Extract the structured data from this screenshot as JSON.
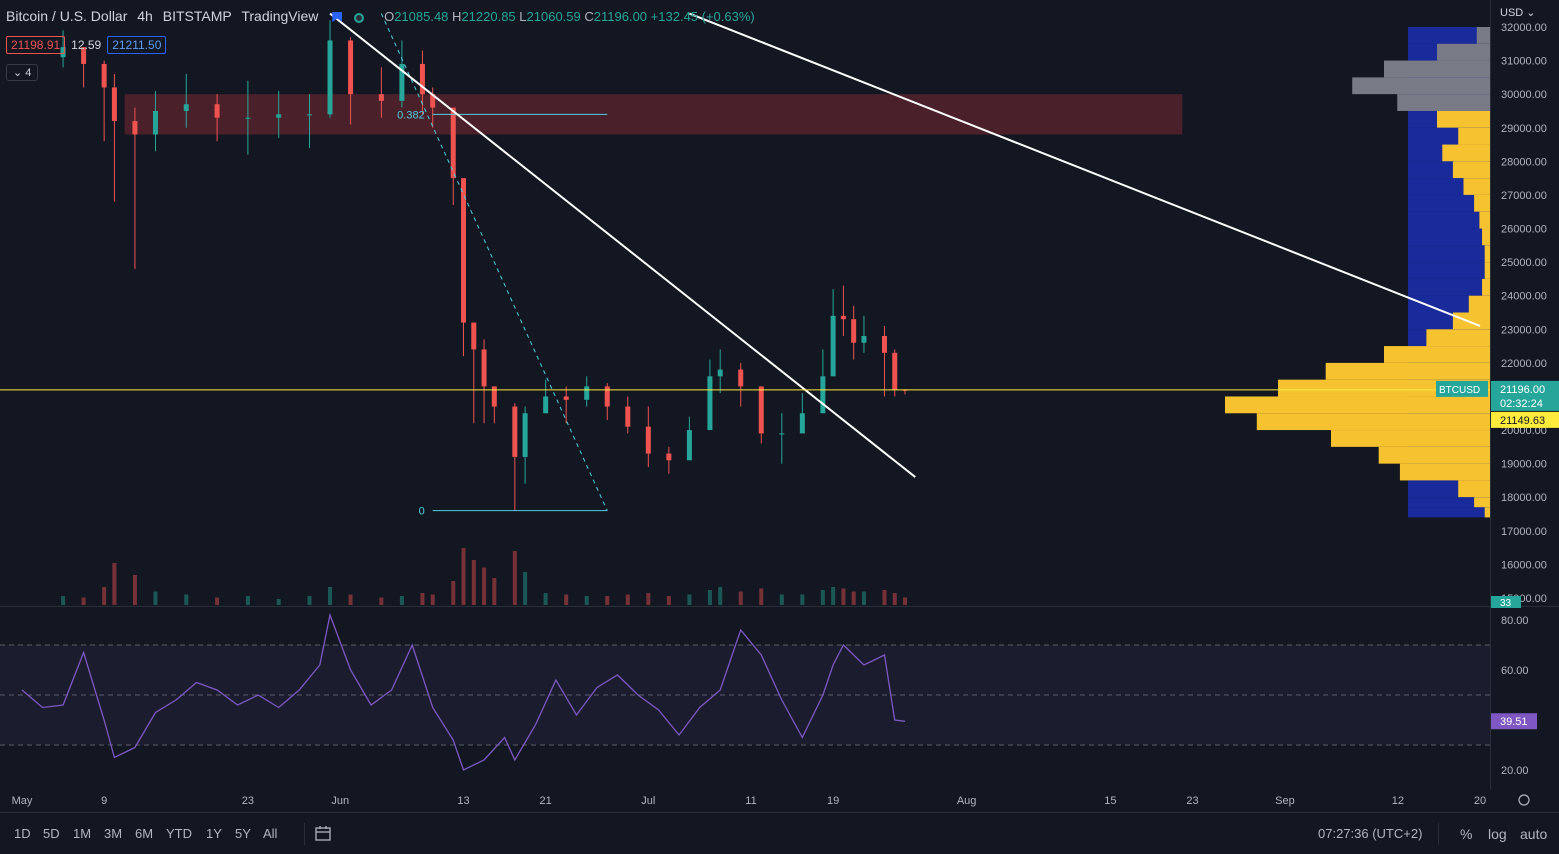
{
  "header": {
    "symbol_title": "Bitcoin / U.S. Dollar",
    "interval": "4h",
    "exchange": "BITSTAMP",
    "source": "TradingView",
    "ohlc": {
      "open_label": "O",
      "open": "21085.48",
      "high_label": "H",
      "high": "21220.85",
      "low_label": "L",
      "low": "21060.59",
      "close_label": "C",
      "close": "21196.00",
      "change": "+132.45 (+0.63%)"
    },
    "bid": "21198.91",
    "spread": "12.59",
    "ask": "21211.50",
    "indicator_count": "4"
  },
  "colors": {
    "background": "#131722",
    "up": "#26a69a",
    "down": "#ef5350",
    "current_price_line": "#ffeb3b",
    "vp_value_area": "#f7c22f",
    "vp_outside": "#787b86",
    "vp_bg": "#1b2ea8",
    "rsi_line": "#7e57c2",
    "fib": "#4dd0e1",
    "zone": "rgba(120,40,50,0.55)",
    "trendline": "#ffffff"
  },
  "chart_data": [
    {
      "type": "candlestick",
      "title": "Bitcoin / U.S. Dollar · 4h · BITSTAMP",
      "currency": "USD",
      "y_ticks": [
        "15000.00",
        "16000.00",
        "17000.00",
        "18000.00",
        "19000.00",
        "20000.00",
        "21000.00",
        "22000.00",
        "23000.00",
        "24000.00",
        "25000.00",
        "26000.00",
        "27000.00",
        "28000.00",
        "29000.00",
        "30000.00",
        "31000.00",
        "32000.00"
      ],
      "ylim": [
        14800,
        32400
      ],
      "x_ticks": [
        "May",
        "9",
        "23",
        "Jun",
        "13",
        "21",
        "Jul",
        "11",
        "19",
        "Aug",
        "15",
        "23",
        "Sep",
        "12",
        "20"
      ],
      "x_tick_dates": [
        "2022-05-01",
        "2022-05-09",
        "2022-05-23",
        "2022-06-01",
        "2022-06-13",
        "2022-06-21",
        "2022-07-01",
        "2022-07-11",
        "2022-07-19",
        "2022-08-01",
        "2022-08-15",
        "2022-08-23",
        "2022-09-01",
        "2022-09-12",
        "2022-09-20"
      ],
      "series": [
        {
          "name": "BTCUSD",
          "x": [
            "2022-05-05",
            "2022-05-07",
            "2022-05-09",
            "2022-05-10",
            "2022-05-12",
            "2022-05-14",
            "2022-05-17",
            "2022-05-20",
            "2022-05-23",
            "2022-05-26",
            "2022-05-29",
            "2022-05-31",
            "2022-06-02",
            "2022-06-05",
            "2022-06-07",
            "2022-06-09",
            "2022-06-10",
            "2022-06-12",
            "2022-06-13",
            "2022-06-14",
            "2022-06-15",
            "2022-06-16",
            "2022-06-18",
            "2022-06-19",
            "2022-06-21",
            "2022-06-23",
            "2022-06-25",
            "2022-06-27",
            "2022-06-29",
            "2022-07-01",
            "2022-07-03",
            "2022-07-05",
            "2022-07-07",
            "2022-07-08",
            "2022-07-10",
            "2022-07-12",
            "2022-07-14",
            "2022-07-16",
            "2022-07-18",
            "2022-07-19",
            "2022-07-20",
            "2022-07-21",
            "2022-07-22",
            "2022-07-24",
            "2022-07-25",
            "2022-07-26"
          ],
          "close": [
            31400,
            30900,
            30200,
            29200,
            28800,
            29500,
            29700,
            29300,
            29300,
            29400,
            29400,
            31600,
            30000,
            29800,
            30900,
            30000,
            29600,
            27500,
            23200,
            22400,
            21300,
            20700,
            19200,
            20500,
            21000,
            20900,
            21300,
            20700,
            20100,
            19300,
            19100,
            20000,
            21600,
            21800,
            21300,
            19900,
            19900,
            20500,
            21600,
            23400,
            23300,
            22600,
            22800,
            22300,
            21200,
            21196
          ],
          "high": [
            31900,
            31400,
            31000,
            30600,
            29600,
            30100,
            30600,
            30000,
            30400,
            30100,
            30000,
            32200,
            31700,
            30800,
            31600,
            31300,
            30200,
            29600,
            25500,
            23100,
            22700,
            21300,
            20800,
            20700,
            21500,
            21300,
            21600,
            21400,
            21000,
            20700,
            19500,
            20400,
            22100,
            22400,
            22000,
            20500,
            20500,
            21100,
            22400,
            24200,
            24300,
            23700,
            23400,
            23100,
            22400,
            21221
          ],
          "low": [
            30800,
            30200,
            28600,
            26800,
            24800,
            28300,
            29000,
            28600,
            28200,
            28700,
            28400,
            29300,
            29100,
            29300,
            29600,
            29400,
            29000,
            26700,
            22200,
            20200,
            20200,
            20200,
            17600,
            18400,
            20500,
            20200,
            20700,
            20300,
            19900,
            18900,
            18700,
            19200,
            20200,
            21100,
            20700,
            19600,
            19000,
            20100,
            20800,
            21600,
            22800,
            22100,
            22300,
            21000,
            21000,
            21060
          ]
        }
      ],
      "price_line": {
        "label": "BTCUSD",
        "value": 21196.0,
        "countdown": "02:32:24"
      },
      "marker_value": "21149.63",
      "zone": {
        "from": "2022-05-11",
        "to": "2022-08-22",
        "low": 28800,
        "high": 30000
      },
      "fib_levels": [
        {
          "label": "0.382",
          "value": 29400
        },
        {
          "label": "0",
          "value": 17600
        }
      ],
      "fib_range_dates": [
        "2022-06-10",
        "2022-06-27"
      ],
      "trendlines": [
        {
          "from_date": "2022-05-31",
          "from_value": 32400,
          "to_date": "2022-07-27",
          "to_value": 18600
        },
        {
          "from_date": "2022-07-05",
          "from_value": 32400,
          "to_date": "2022-09-20",
          "to_value": 23100
        }
      ],
      "fib_diagonal": {
        "from_date": "2022-06-05",
        "from_value": 32400,
        "to_date": "2022-06-27",
        "to_value": 17600
      },
      "volume": {
        "max": 40,
        "values": [
          6,
          5,
          12,
          28,
          20,
          9,
          7,
          5,
          6,
          4,
          6,
          12,
          7,
          5,
          6,
          8,
          7,
          16,
          38,
          30,
          25,
          18,
          36,
          22,
          8,
          7,
          6,
          6,
          7,
          8,
          6,
          7,
          10,
          12,
          9,
          11,
          7,
          7,
          10,
          12,
          11,
          9,
          9,
          10,
          8,
          5
        ]
      },
      "volume_profile": {
        "price_levels": [
          32000,
          31500,
          31000,
          30500,
          30000,
          29500,
          29000,
          28500,
          28000,
          27500,
          27000,
          26500,
          26000,
          25500,
          25000,
          24500,
          24000,
          23500,
          23000,
          22500,
          22000,
          21500,
          21000,
          20500,
          20000,
          19500,
          19000,
          18500,
          18000,
          17700
        ],
        "volumes": [
          5,
          20,
          40,
          52,
          35,
          20,
          12,
          18,
          14,
          10,
          6,
          4,
          3,
          2,
          2,
          3,
          8,
          14,
          24,
          40,
          62,
          80,
          100,
          88,
          60,
          42,
          34,
          12,
          6,
          2
        ],
        "value_area_low": 17700,
        "value_area_high": 29500
      }
    },
    {
      "type": "line",
      "title": "RSI",
      "y_ticks": [
        "20.00",
        "40.00",
        "60.00",
        "80.00"
      ],
      "ylim": [
        15,
        85
      ],
      "bands": [
        30,
        50,
        70
      ],
      "current_value": "39.51",
      "series": [
        {
          "name": "RSI",
          "x": [
            "2022-05-01",
            "2022-05-03",
            "2022-05-05",
            "2022-05-07",
            "2022-05-09",
            "2022-05-10",
            "2022-05-12",
            "2022-05-14",
            "2022-05-16",
            "2022-05-18",
            "2022-05-20",
            "2022-05-22",
            "2022-05-24",
            "2022-05-26",
            "2022-05-28",
            "2022-05-30",
            "2022-05-31",
            "2022-06-02",
            "2022-06-04",
            "2022-06-06",
            "2022-06-08",
            "2022-06-10",
            "2022-06-12",
            "2022-06-13",
            "2022-06-15",
            "2022-06-17",
            "2022-06-18",
            "2022-06-20",
            "2022-06-22",
            "2022-06-24",
            "2022-06-26",
            "2022-06-28",
            "2022-06-30",
            "2022-07-02",
            "2022-07-04",
            "2022-07-06",
            "2022-07-08",
            "2022-07-10",
            "2022-07-12",
            "2022-07-14",
            "2022-07-16",
            "2022-07-18",
            "2022-07-19",
            "2022-07-20",
            "2022-07-22",
            "2022-07-24",
            "2022-07-25",
            "2022-07-26"
          ],
          "values": [
            52,
            45,
            46,
            67,
            40,
            25,
            29,
            43,
            48,
            55,
            52,
            46,
            50,
            45,
            52,
            62,
            82,
            60,
            46,
            52,
            70,
            45,
            32,
            20,
            24,
            33,
            24,
            38,
            56,
            42,
            53,
            58,
            50,
            44,
            34,
            45,
            52,
            76,
            66,
            48,
            33,
            50,
            62,
            70,
            62,
            66,
            40,
            39.5
          ]
        }
      ]
    }
  ],
  "time_axis": {
    "ticks": [
      "May",
      "9",
      "23",
      "Jun",
      "13",
      "21",
      "Jul",
      "11",
      "19",
      "Aug",
      "15",
      "23",
      "Sep",
      "12",
      "20"
    ]
  },
  "bottom_bar": {
    "ranges": [
      "1D",
      "5D",
      "1M",
      "3M",
      "6M",
      "YTD",
      "1Y",
      "5Y",
      "All"
    ],
    "clock": "07:27:36 (UTC+2)",
    "percent": "%",
    "log": "log",
    "auto": "auto"
  },
  "currency_button": "USD",
  "volume_tag": "33"
}
